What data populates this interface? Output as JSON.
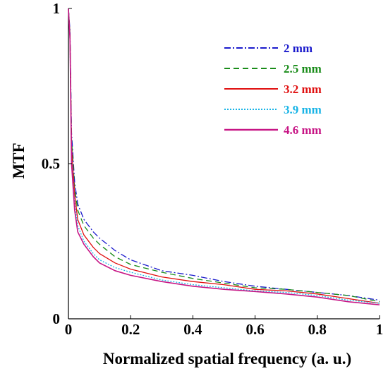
{
  "chart_data": {
    "type": "line",
    "xlabel": "Normalized spatial frequency (a. u.)",
    "ylabel": "MTF",
    "xlim": [
      0,
      1
    ],
    "ylim": [
      0,
      1
    ],
    "grid": false,
    "legend_position": "top-right",
    "x_ticks": [
      "0",
      "0.2",
      "0.4",
      "0.6",
      "0.8",
      "1"
    ],
    "y_ticks": [
      "0",
      "0.5",
      "1"
    ],
    "x": [
      0,
      0.005,
      0.01,
      0.02,
      0.03,
      0.05,
      0.08,
      0.1,
      0.15,
      0.2,
      0.3,
      0.4,
      0.5,
      0.6,
      0.7,
      0.8,
      0.9,
      1.0
    ],
    "series": [
      {
        "name": "2 mm",
        "color": "#1a1acc",
        "dash": "9 3 2 3",
        "values": [
          1.0,
          0.93,
          0.6,
          0.44,
          0.37,
          0.32,
          0.28,
          0.26,
          0.22,
          0.19,
          0.155,
          0.14,
          0.12,
          0.105,
          0.095,
          0.085,
          0.075,
          0.06
        ]
      },
      {
        "name": "2.5 mm",
        "color": "#1a8c1a",
        "dash": "8 5",
        "values": [
          1.0,
          0.92,
          0.58,
          0.42,
          0.35,
          0.3,
          0.26,
          0.24,
          0.2,
          0.175,
          0.15,
          0.13,
          0.115,
          0.1,
          0.095,
          0.085,
          0.075,
          0.055
        ]
      },
      {
        "name": "3.2 mm",
        "color": "#e01010",
        "dash": "",
        "values": [
          1.0,
          0.91,
          0.55,
          0.4,
          0.32,
          0.27,
          0.23,
          0.21,
          0.18,
          0.16,
          0.135,
          0.12,
          0.11,
          0.095,
          0.09,
          0.08,
          0.065,
          0.05
        ]
      },
      {
        "name": "3.9 mm",
        "color": "#19b4e6",
        "dash": "2 2",
        "values": [
          1.0,
          0.9,
          0.52,
          0.37,
          0.3,
          0.25,
          0.21,
          0.19,
          0.165,
          0.15,
          0.125,
          0.11,
          0.1,
          0.09,
          0.085,
          0.075,
          0.06,
          0.05
        ]
      },
      {
        "name": "4.6 mm",
        "color": "#c71585",
        "dash": "",
        "values": [
          1.0,
          0.9,
          0.5,
          0.35,
          0.28,
          0.24,
          0.2,
          0.18,
          0.155,
          0.14,
          0.12,
          0.105,
          0.095,
          0.088,
          0.08,
          0.07,
          0.055,
          0.045
        ]
      }
    ]
  }
}
